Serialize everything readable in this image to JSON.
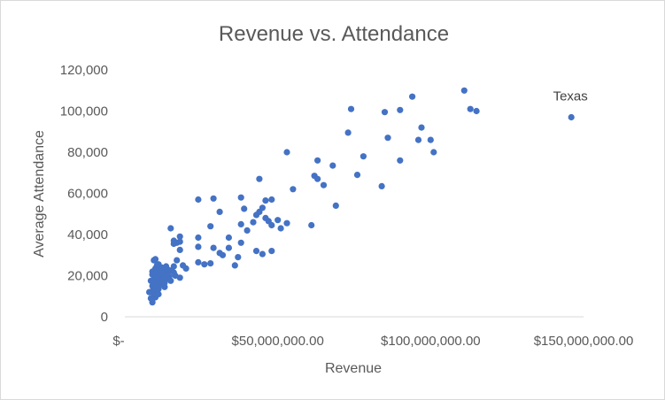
{
  "chart_data": {
    "type": "scatter",
    "title": "Revenue vs. Attendance",
    "xlabel": "Revenue",
    "ylabel": "Average Attendance",
    "xlim": [
      0,
      150000000
    ],
    "ylim": [
      0,
      120000
    ],
    "x_ticks": [
      0,
      50000000,
      100000000,
      150000000
    ],
    "x_tick_labels": [
      "$-",
      "$50,000,000.00",
      "$100,000,000.00",
      "$150,000,000.00"
    ],
    "y_ticks": [
      0,
      20000,
      40000,
      60000,
      80000,
      100000,
      120000
    ],
    "y_tick_labels": [
      "0",
      "20,000",
      "40,000",
      "60,000",
      "80,000",
      "100,000",
      "120,000"
    ],
    "grid": false,
    "legend": "none",
    "marker_color": "#4472C4",
    "annotations": [
      {
        "text": "Texas",
        "x": 146000000,
        "y": 97000
      }
    ],
    "series": [
      {
        "points": [
          [
            146000000,
            97000
          ],
          [
            111000000,
            110000
          ],
          [
            113000000,
            101000
          ],
          [
            115000000,
            100000
          ],
          [
            94000000,
            107000
          ],
          [
            90000000,
            100500
          ],
          [
            85000000,
            99500
          ],
          [
            74000000,
            101000
          ],
          [
            97000000,
            92000
          ],
          [
            100000000,
            86000
          ],
          [
            96000000,
            86000
          ],
          [
            86000000,
            87000
          ],
          [
            101000000,
            80000
          ],
          [
            73000000,
            89500
          ],
          [
            78000000,
            78000
          ],
          [
            90000000,
            76000
          ],
          [
            53000000,
            80000
          ],
          [
            63000000,
            76000
          ],
          [
            68000000,
            73500
          ],
          [
            62000000,
            68500
          ],
          [
            63000000,
            67000
          ],
          [
            65000000,
            64000
          ],
          [
            76000000,
            69000
          ],
          [
            84000000,
            63500
          ],
          [
            55000000,
            62000
          ],
          [
            69000000,
            54000
          ],
          [
            44000000,
            67000
          ],
          [
            38000000,
            58000
          ],
          [
            48000000,
            57000
          ],
          [
            46000000,
            56500
          ],
          [
            29000000,
            57500
          ],
          [
            24000000,
            57000
          ],
          [
            45000000,
            53000
          ],
          [
            44000000,
            51000
          ],
          [
            43000000,
            49500
          ],
          [
            39000000,
            52500
          ],
          [
            31000000,
            51000
          ],
          [
            46000000,
            48000
          ],
          [
            47000000,
            46500
          ],
          [
            50000000,
            47000
          ],
          [
            53000000,
            45500
          ],
          [
            48000000,
            44500
          ],
          [
            51000000,
            43000
          ],
          [
            42000000,
            46000
          ],
          [
            38000000,
            45000
          ],
          [
            40000000,
            42000
          ],
          [
            61000000,
            44500
          ],
          [
            28000000,
            44000
          ],
          [
            34000000,
            38500
          ],
          [
            38000000,
            36000
          ],
          [
            34000000,
            33500
          ],
          [
            43000000,
            32000
          ],
          [
            48000000,
            32000
          ],
          [
            45000000,
            30500
          ],
          [
            37000000,
            29000
          ],
          [
            31000000,
            31000
          ],
          [
            32000000,
            30000
          ],
          [
            29000000,
            33500
          ],
          [
            28000000,
            26000
          ],
          [
            26000000,
            25500
          ],
          [
            24000000,
            26500
          ],
          [
            20000000,
            23500
          ],
          [
            36000000,
            25000
          ],
          [
            15000000,
            43000
          ],
          [
            16000000,
            37000
          ],
          [
            17000000,
            36000
          ],
          [
            18000000,
            39000
          ],
          [
            18000000,
            36500
          ],
          [
            16000000,
            35500
          ],
          [
            24000000,
            38500
          ],
          [
            24000000,
            34000
          ],
          [
            18000000,
            32500
          ],
          [
            17000000,
            27500
          ],
          [
            19000000,
            25000
          ],
          [
            18000000,
            19000
          ],
          [
            16000000,
            24500
          ],
          [
            15000000,
            22500
          ],
          [
            16000000,
            21500
          ],
          [
            14000000,
            23000
          ],
          [
            13000000,
            22000
          ],
          [
            12000000,
            24000
          ],
          [
            11000000,
            25500
          ],
          [
            10000000,
            28000
          ],
          [
            9500000,
            27500
          ],
          [
            11000000,
            23000
          ],
          [
            12000000,
            20000
          ],
          [
            13000000,
            18000
          ],
          [
            14000000,
            20500
          ],
          [
            12000000,
            16500
          ],
          [
            13000000,
            14500
          ],
          [
            11000000,
            17500
          ],
          [
            10500000,
            19500
          ],
          [
            10000000,
            21500
          ],
          [
            9000000,
            20500
          ],
          [
            9500000,
            18000
          ],
          [
            10000000,
            16000
          ],
          [
            9000000,
            15000
          ],
          [
            8500000,
            17500
          ],
          [
            9000000,
            12500
          ],
          [
            8000000,
            12000
          ],
          [
            10000000,
            13000
          ],
          [
            9500000,
            10500
          ],
          [
            10000000,
            9500
          ],
          [
            9000000,
            8500
          ],
          [
            9000000,
            7000
          ],
          [
            8500000,
            9000
          ],
          [
            11000000,
            11000
          ],
          [
            12500000,
            21500
          ],
          [
            14500000,
            19500
          ],
          [
            12000000,
            18500
          ],
          [
            11500000,
            15500
          ],
          [
            10500000,
            14000
          ],
          [
            13000000,
            16500
          ],
          [
            15000000,
            17500
          ],
          [
            16500000,
            20000
          ],
          [
            11000000,
            13500
          ],
          [
            12000000,
            22500
          ],
          [
            10000000,
            23500
          ],
          [
            9000000,
            22000
          ],
          [
            10500000,
            25000
          ],
          [
            13500000,
            24500
          ],
          [
            14000000,
            18500
          ],
          [
            12500000,
            19000
          ],
          [
            10000000,
            18500
          ],
          [
            11500000,
            21000
          ],
          [
            11000000,
            19500
          ],
          [
            12000000,
            17000
          ],
          [
            13000000,
            20500
          ]
        ]
      }
    ]
  }
}
